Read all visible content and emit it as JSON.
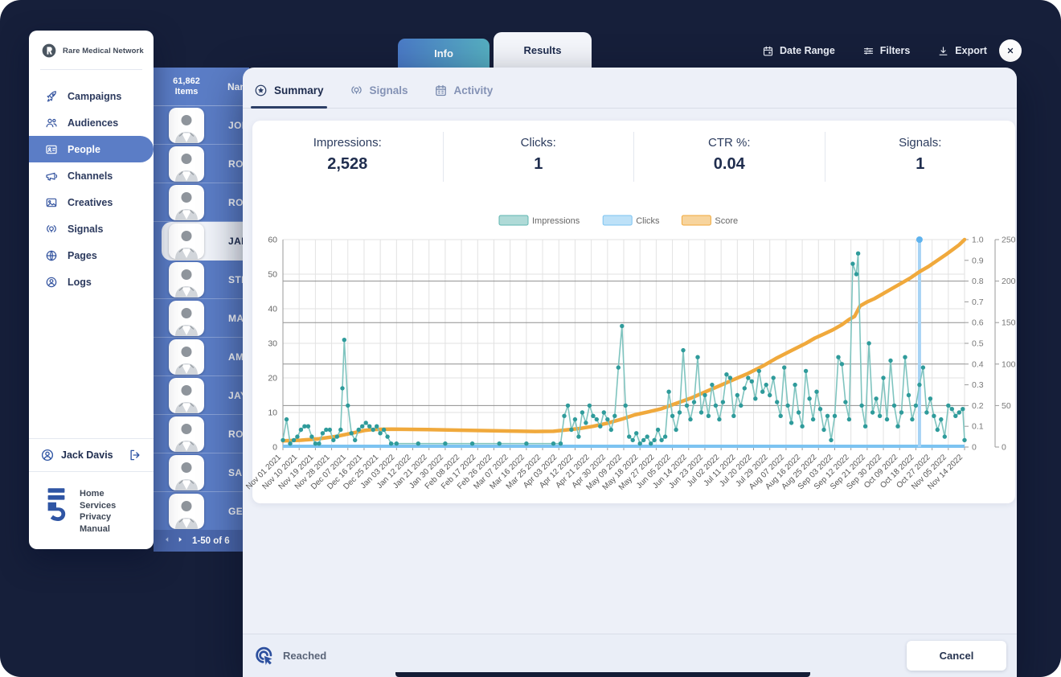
{
  "topbar": {
    "tabs": [
      {
        "label": "Info",
        "active": false
      },
      {
        "label": "Results",
        "active": true
      }
    ],
    "actions": [
      {
        "label": "Date Range",
        "icon": "calendar"
      },
      {
        "label": "Filters",
        "icon": "filters"
      },
      {
        "label": "Export",
        "icon": "export"
      }
    ]
  },
  "sidebar": {
    "brand": "Rare Medical Network",
    "items": [
      {
        "label": "Campaigns",
        "icon": "rocket",
        "active": false
      },
      {
        "label": "Audiences",
        "icon": "audiences",
        "active": false
      },
      {
        "label": "People",
        "icon": "idcard",
        "active": true
      },
      {
        "label": "Channels",
        "icon": "megaphone",
        "active": false
      },
      {
        "label": "Creatives",
        "icon": "image",
        "active": false
      },
      {
        "label": "Signals",
        "icon": "signal",
        "active": false
      },
      {
        "label": "Pages",
        "icon": "globe",
        "active": false
      },
      {
        "label": "Logs",
        "icon": "person",
        "active": false
      }
    ],
    "user": {
      "name": "Jack Davis"
    },
    "footer_links": [
      "Home",
      "Services",
      "Privacy",
      "Manual"
    ]
  },
  "people_list": {
    "items_count": "61,862",
    "items_word": "Items",
    "name_column_header": "Nam",
    "rows": [
      {
        "name": "JOH",
        "selected": false
      },
      {
        "name": "ROB",
        "selected": false
      },
      {
        "name": "RON",
        "selected": false
      },
      {
        "name": "JAIN",
        "selected": true
      },
      {
        "name": "STE",
        "selected": false
      },
      {
        "name": "MAL",
        "selected": false
      },
      {
        "name": "AMI",
        "selected": false
      },
      {
        "name": "JAY",
        "selected": false
      },
      {
        "name": "ROB",
        "selected": false
      },
      {
        "name": "SAN",
        "selected": false
      },
      {
        "name": "GEO",
        "selected": false
      }
    ],
    "pagination_label": "1-50 of 6"
  },
  "modal": {
    "tabs": [
      {
        "label": "Summary",
        "icon": "star-circle",
        "active": true
      },
      {
        "label": "Signals",
        "icon": "signal",
        "active": false
      },
      {
        "label": "Activity",
        "icon": "calendar-grid",
        "active": false
      }
    ],
    "stats": [
      {
        "label": "Impressions:",
        "value": "2,528"
      },
      {
        "label": "Clicks:",
        "value": "1"
      },
      {
        "label": "CTR %:",
        "value": "0.04"
      },
      {
        "label": "Signals:",
        "value": "1"
      }
    ],
    "footer": {
      "status_label": "Reached",
      "cancel_label": "Cancel"
    }
  },
  "chart_data": {
    "type": "line",
    "legend_position": "top-center",
    "grid": true,
    "x_axis": {
      "days_per_tick": 9,
      "total_days": 378,
      "tick_labels": [
        "Nov 01 2021",
        "Nov 10 2021",
        "Nov 19 2021",
        "Nov 28 2021",
        "Dec 07 2021",
        "Dec 16 2021",
        "Dec 25 2021",
        "Jan 03 2022",
        "Jan 12 2022",
        "Jan 21 2022",
        "Jan 30 2022",
        "Feb 08 2022",
        "Feb 17 2022",
        "Feb 26 2022",
        "Mar 07 2022",
        "Mar 16 2022",
        "Mar 25 2022",
        "Apr 03 2022",
        "Apr 12 2022",
        "Apr 21 2022",
        "Apr 30 2022",
        "May 09 2022",
        "May 18 2022",
        "May 27 2022",
        "Jun 05 2022",
        "Jun 14 2022",
        "Jun 23 2022",
        "Jul 02 2022",
        "Jul 11 2022",
        "Jul 20 2022",
        "Jul 29 2022",
        "Aug 07 2022",
        "Aug 16 2022",
        "Aug 25 2022",
        "Sep 03 2022",
        "Sep 12 2022",
        "Sep 21 2022",
        "Sep 30 2022",
        "Oct 09 2022",
        "Oct 18 2022",
        "Oct 27 2022",
        "Nov 05 2022",
        "Nov 14 2022"
      ]
    },
    "y_left": {
      "min": 0,
      "max": 60,
      "ticks": [
        0,
        10,
        20,
        30,
        40,
        50,
        60
      ]
    },
    "y_right_ratio": {
      "min": 0,
      "max": 1,
      "ticks": [
        0,
        0.1,
        0.2,
        0.3,
        0.4,
        0.5,
        0.6,
        0.7,
        0.8,
        0.9,
        1
      ]
    },
    "y_right_count": {
      "min": 0,
      "max": 250,
      "ticks": [
        0,
        50,
        100,
        150,
        200,
        250
      ]
    },
    "series": [
      {
        "name": "Impressions",
        "color": "#5fb6b0",
        "axis": "left",
        "points": [
          [
            0,
            2
          ],
          [
            2,
            8
          ],
          [
            4,
            1
          ],
          [
            6,
            2
          ],
          [
            8,
            3
          ],
          [
            10,
            5
          ],
          [
            12,
            6
          ],
          [
            14,
            6
          ],
          [
            16,
            3
          ],
          [
            18,
            1
          ],
          [
            20,
            1
          ],
          [
            22,
            4
          ],
          [
            24,
            5
          ],
          [
            26,
            5
          ],
          [
            28,
            2
          ],
          [
            30,
            3
          ],
          [
            32,
            5
          ],
          [
            33,
            17
          ],
          [
            34,
            31
          ],
          [
            36,
            12
          ],
          [
            38,
            4
          ],
          [
            40,
            2
          ],
          [
            42,
            5
          ],
          [
            44,
            6
          ],
          [
            46,
            7
          ],
          [
            48,
            6
          ],
          [
            50,
            5
          ],
          [
            52,
            6
          ],
          [
            54,
            4
          ],
          [
            56,
            5
          ],
          [
            58,
            3
          ],
          [
            60,
            1
          ],
          [
            63,
            1
          ],
          [
            75,
            1
          ],
          [
            90,
            1
          ],
          [
            105,
            1
          ],
          [
            120,
            1
          ],
          [
            135,
            1
          ],
          [
            150,
            1
          ],
          [
            154,
            1
          ],
          [
            156,
            9
          ],
          [
            158,
            12
          ],
          [
            160,
            5
          ],
          [
            162,
            8
          ],
          [
            164,
            3
          ],
          [
            166,
            10
          ],
          [
            168,
            7
          ],
          [
            170,
            12
          ],
          [
            172,
            9
          ],
          [
            174,
            8
          ],
          [
            176,
            6
          ],
          [
            178,
            10
          ],
          [
            180,
            8
          ],
          [
            182,
            5
          ],
          [
            184,
            9
          ],
          [
            186,
            23
          ],
          [
            188,
            35
          ],
          [
            190,
            12
          ],
          [
            192,
            3
          ],
          [
            194,
            2
          ],
          [
            196,
            4
          ],
          [
            198,
            1
          ],
          [
            200,
            2
          ],
          [
            202,
            3
          ],
          [
            204,
            1
          ],
          [
            206,
            2
          ],
          [
            208,
            5
          ],
          [
            210,
            2
          ],
          [
            212,
            3
          ],
          [
            214,
            16
          ],
          [
            216,
            9
          ],
          [
            218,
            5
          ],
          [
            220,
            10
          ],
          [
            222,
            28
          ],
          [
            224,
            12
          ],
          [
            226,
            8
          ],
          [
            228,
            13
          ],
          [
            230,
            26
          ],
          [
            232,
            10
          ],
          [
            234,
            15
          ],
          [
            236,
            9
          ],
          [
            238,
            18
          ],
          [
            240,
            12
          ],
          [
            242,
            8
          ],
          [
            244,
            13
          ],
          [
            246,
            21
          ],
          [
            248,
            20
          ],
          [
            250,
            9
          ],
          [
            252,
            15
          ],
          [
            254,
            12
          ],
          [
            256,
            17
          ],
          [
            258,
            20
          ],
          [
            260,
            19
          ],
          [
            262,
            14
          ],
          [
            264,
            22
          ],
          [
            266,
            16
          ],
          [
            268,
            18
          ],
          [
            270,
            15
          ],
          [
            272,
            20
          ],
          [
            274,
            13
          ],
          [
            276,
            9
          ],
          [
            278,
            23
          ],
          [
            280,
            12
          ],
          [
            282,
            7
          ],
          [
            284,
            18
          ],
          [
            286,
            10
          ],
          [
            288,
            6
          ],
          [
            290,
            22
          ],
          [
            292,
            14
          ],
          [
            294,
            8
          ],
          [
            296,
            16
          ],
          [
            298,
            11
          ],
          [
            300,
            5
          ],
          [
            302,
            9
          ],
          [
            304,
            2
          ],
          [
            306,
            9
          ],
          [
            308,
            26
          ],
          [
            310,
            24
          ],
          [
            312,
            13
          ],
          [
            314,
            8
          ],
          [
            316,
            53
          ],
          [
            318,
            50
          ],
          [
            319,
            56
          ],
          [
            321,
            12
          ],
          [
            323,
            6
          ],
          [
            325,
            30
          ],
          [
            327,
            10
          ],
          [
            329,
            14
          ],
          [
            331,
            9
          ],
          [
            333,
            20
          ],
          [
            335,
            8
          ],
          [
            337,
            25
          ],
          [
            339,
            12
          ],
          [
            341,
            6
          ],
          [
            343,
            10
          ],
          [
            345,
            26
          ],
          [
            347,
            15
          ],
          [
            349,
            8
          ],
          [
            351,
            12
          ],
          [
            353,
            18
          ],
          [
            355,
            23
          ],
          [
            357,
            10
          ],
          [
            359,
            14
          ],
          [
            361,
            9
          ],
          [
            363,
            5
          ],
          [
            365,
            8
          ],
          [
            367,
            3
          ],
          [
            369,
            12
          ],
          [
            371,
            11
          ],
          [
            373,
            9
          ],
          [
            375,
            10
          ],
          [
            377,
            11
          ],
          [
            378,
            2
          ]
        ]
      },
      {
        "name": "Clicks",
        "color": "#7cc3f1",
        "axis": "right_ratio",
        "baseline": 0,
        "spike": {
          "day": 353,
          "value": 1
        }
      },
      {
        "name": "Score",
        "color": "#f0a93c",
        "axis": "right_ratio",
        "points": [
          [
            0,
            0.03
          ],
          [
            10,
            0.033
          ],
          [
            20,
            0.04
          ],
          [
            30,
            0.052
          ],
          [
            40,
            0.07
          ],
          [
            45,
            0.08
          ],
          [
            50,
            0.085
          ],
          [
            60,
            0.086
          ],
          [
            80,
            0.084
          ],
          [
            100,
            0.081
          ],
          [
            120,
            0.078
          ],
          [
            140,
            0.075
          ],
          [
            150,
            0.076
          ],
          [
            157,
            0.082
          ],
          [
            165,
            0.09
          ],
          [
            172,
            0.1
          ],
          [
            180,
            0.115
          ],
          [
            188,
            0.135
          ],
          [
            195,
            0.155
          ],
          [
            203,
            0.17
          ],
          [
            210,
            0.185
          ],
          [
            218,
            0.21
          ],
          [
            226,
            0.235
          ],
          [
            234,
            0.265
          ],
          [
            242,
            0.295
          ],
          [
            250,
            0.325
          ],
          [
            258,
            0.355
          ],
          [
            266,
            0.39
          ],
          [
            274,
            0.43
          ],
          [
            282,
            0.465
          ],
          [
            290,
            0.5
          ],
          [
            295,
            0.525
          ],
          [
            300,
            0.545
          ],
          [
            305,
            0.565
          ],
          [
            310,
            0.59
          ],
          [
            314,
            0.615
          ],
          [
            317,
            0.63
          ],
          [
            320,
            0.68
          ],
          [
            324,
            0.7
          ],
          [
            328,
            0.715
          ],
          [
            333,
            0.74
          ],
          [
            338,
            0.765
          ],
          [
            343,
            0.79
          ],
          [
            348,
            0.815
          ],
          [
            353,
            0.845
          ],
          [
            358,
            0.87
          ],
          [
            363,
            0.9
          ],
          [
            368,
            0.93
          ],
          [
            372,
            0.955
          ],
          [
            375,
            0.975
          ],
          [
            378,
            1
          ]
        ]
      }
    ]
  }
}
